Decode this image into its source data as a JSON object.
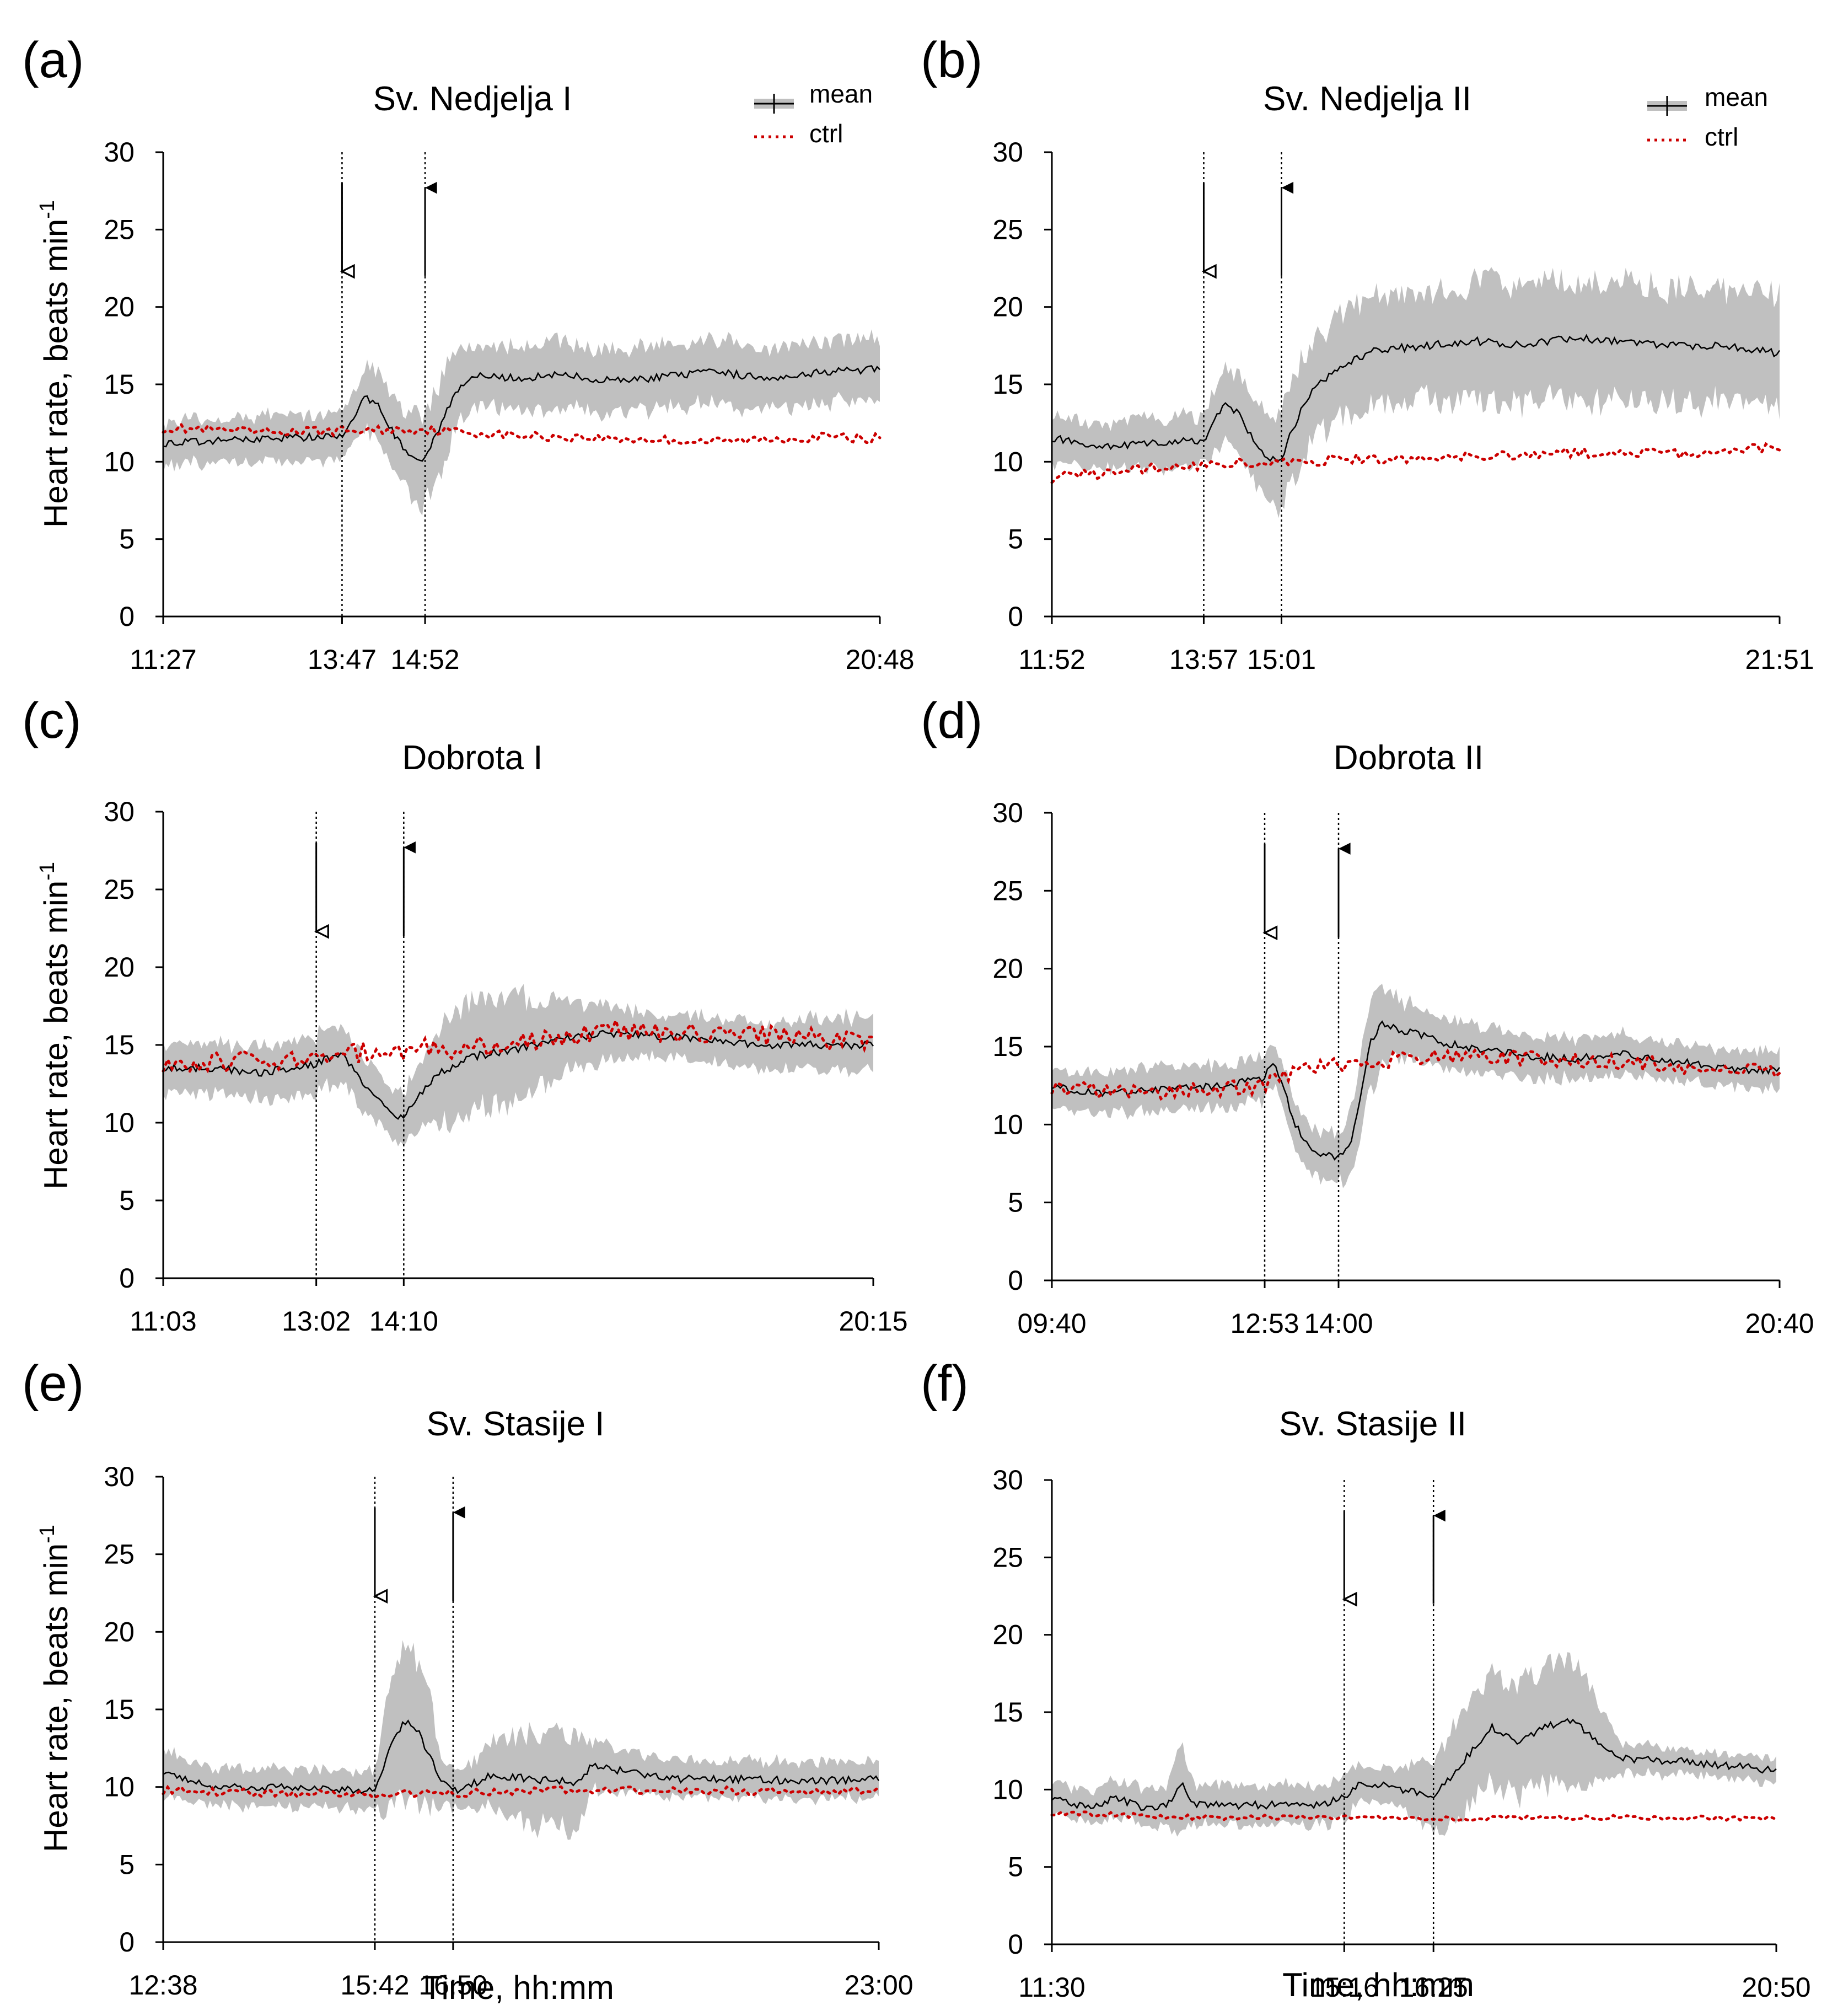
{
  "figure": {
    "xlabel": "Time, hh:mm",
    "ylabel": "Heart rate, beats min",
    "ylabel_sup": "-1",
    "legend": {
      "mean_label": "mean",
      "ctrl_label": "ctrl"
    }
  },
  "colors": {
    "mean": "#000000",
    "band": "#c0c0c0",
    "ctrl": "#cc0000",
    "axis": "#000000"
  },
  "chart_data": [
    {
      "letter": "(a)",
      "title": "Sv. Nedjelja I",
      "type": "line",
      "show_legend": true,
      "xlim": [
        687,
        1248
      ],
      "ylim": [
        0,
        30
      ],
      "yticks": [
        0,
        5,
        10,
        15,
        20,
        25,
        30
      ],
      "xticks": [
        {
          "v": 687,
          "label": "11:27"
        },
        {
          "v": 827,
          "label": "13:47"
        },
        {
          "v": 892,
          "label": "14:52"
        },
        {
          "v": 1248,
          "label": "20:48"
        }
      ],
      "arrows": {
        "down": 827,
        "up": 892
      },
      "ctrl_noise": 0.3,
      "series": [
        {
          "name": "mean",
          "x": [
            687,
            720,
            760,
            800,
            827,
            835,
            845,
            855,
            865,
            875,
            885,
            892,
            905,
            915,
            925,
            935,
            960,
            1000,
            1040,
            1080,
            1120,
            1160,
            1200,
            1248
          ],
          "y": [
            11.2,
            11.3,
            11.5,
            11.6,
            11.6,
            12.5,
            14.2,
            13.8,
            12.2,
            10.8,
            10.2,
            10.3,
            12.5,
            14.5,
            15.2,
            15.5,
            15.4,
            15.6,
            15.2,
            15.5,
            15.8,
            15.4,
            15.8,
            16.0
          ],
          "err": [
            1.4,
            1.4,
            1.5,
            1.5,
            1.5,
            1.6,
            2.0,
            2.2,
            2.3,
            2.5,
            3.0,
            3.0,
            3.0,
            2.4,
            2.0,
            2.0,
            2.0,
            2.2,
            2.0,
            2.0,
            2.0,
            2.0,
            2.0,
            2.0
          ]
        },
        {
          "name": "ctrl",
          "x": [
            687,
            760,
            827,
            892,
            960,
            1040,
            1120,
            1200,
            1248
          ],
          "y": [
            12.2,
            11.9,
            12.0,
            12.1,
            11.7,
            11.5,
            11.3,
            11.6,
            11.5
          ]
        }
      ]
    },
    {
      "letter": "(b)",
      "title": "Sv. Nedjelja II",
      "type": "line",
      "show_legend": true,
      "xlim": [
        712,
        1311
      ],
      "ylim": [
        0,
        30
      ],
      "yticks": [
        0,
        5,
        10,
        15,
        20,
        25,
        30
      ],
      "xticks": [
        {
          "v": 712,
          "label": "11:52"
        },
        {
          "v": 837,
          "label": "13:57"
        },
        {
          "v": 901,
          "label": "15:01"
        },
        {
          "v": 1311,
          "label": "21:51"
        }
      ],
      "arrows": {
        "down": 837,
        "up": 901
      },
      "ctrl_noise": 0.35,
      "series": [
        {
          "name": "mean",
          "x": [
            712,
            760,
            800,
            837,
            845,
            855,
            865,
            880,
            890,
            901,
            915,
            930,
            950,
            980,
            1020,
            1060,
            1100,
            1140,
            1180,
            1220,
            1260,
            1311
          ],
          "y": [
            11.5,
            11.0,
            11.2,
            11.4,
            12.5,
            13.8,
            13.2,
            11.2,
            10.0,
            10.3,
            13.0,
            15.0,
            16.2,
            17.2,
            17.5,
            17.8,
            17.5,
            18.0,
            17.8,
            17.5,
            17.5,
            17.0
          ],
          "err": [
            1.5,
            1.5,
            1.6,
            1.6,
            2.0,
            2.5,
            2.5,
            2.6,
            3.0,
            3.2,
            3.2,
            3.2,
            3.3,
            3.5,
            3.5,
            3.8,
            3.8,
            3.8,
            3.8,
            3.7,
            3.6,
            3.6
          ]
        },
        {
          "name": "ctrl",
          "x": [
            712,
            800,
            837,
            901,
            960,
            1040,
            1120,
            1200,
            1260,
            1311
          ],
          "y": [
            9.0,
            9.6,
            9.8,
            10.0,
            10.2,
            10.3,
            10.6,
            10.6,
            10.5,
            11.0
          ]
        }
      ]
    },
    {
      "letter": "(c)",
      "title": "Dobrota I",
      "type": "line",
      "show_legend": false,
      "xlim": [
        663,
        1215
      ],
      "ylim": [
        0,
        30
      ],
      "yticks": [
        0,
        5,
        10,
        15,
        20,
        25,
        30
      ],
      "xticks": [
        {
          "v": 663,
          "label": "11:03"
        },
        {
          "v": 782,
          "label": "13:02"
        },
        {
          "v": 850,
          "label": "14:10"
        },
        {
          "v": 1215,
          "label": "20:15"
        }
      ],
      "arrows": {
        "down": 782,
        "up": 850
      },
      "ctrl_noise": 0.7,
      "series": [
        {
          "name": "mean",
          "x": [
            663,
            700,
            740,
            782,
            800,
            815,
            830,
            845,
            850,
            860,
            875,
            900,
            940,
            980,
            1020,
            1060,
            1100,
            1140,
            1180,
            1215
          ],
          "y": [
            13.5,
            13.5,
            13.2,
            13.8,
            14.5,
            13.0,
            11.5,
            10.5,
            10.3,
            11.5,
            13.0,
            14.2,
            14.8,
            15.5,
            15.8,
            15.5,
            15.2,
            15.0,
            15.0,
            15.0
          ],
          "err": [
            1.6,
            1.6,
            1.6,
            1.8,
            1.8,
            1.8,
            1.6,
            1.5,
            1.5,
            2.0,
            3.0,
            3.5,
            3.2,
            2.2,
            1.5,
            1.5,
            1.5,
            1.5,
            1.8,
            1.8
          ]
        },
        {
          "name": "ctrl",
          "x": [
            663,
            720,
            782,
            850,
            900,
            960,
            1020,
            1080,
            1140,
            1215
          ],
          "y": [
            14.0,
            14.0,
            14.2,
            14.7,
            14.8,
            15.3,
            16.0,
            15.6,
            15.5,
            15.2
          ]
        }
      ]
    },
    {
      "letter": "(d)",
      "title": "Dobrota II",
      "type": "line",
      "show_legend": false,
      "xlim": [
        580,
        1240
      ],
      "ylim": [
        0,
        30
      ],
      "yticks": [
        0,
        5,
        10,
        15,
        20,
        25,
        30
      ],
      "xticks": [
        {
          "v": 580,
          "label": "09:40"
        },
        {
          "v": 773,
          "label": "12:53"
        },
        {
          "v": 840,
          "label": "14:00"
        },
        {
          "v": 1240,
          "label": "20:40"
        }
      ],
      "arrows": {
        "down": 773,
        "up": 840
      },
      "ctrl_noise": 0.5,
      "series": [
        {
          "name": "mean",
          "x": [
            580,
            620,
            680,
            740,
            773,
            780,
            790,
            800,
            815,
            830,
            840,
            850,
            860,
            870,
            880,
            900,
            950,
            1000,
            1050,
            1100,
            1150,
            1200,
            1240
          ],
          "y": [
            12.5,
            12.0,
            12.2,
            12.5,
            13.0,
            14.0,
            12.5,
            10.0,
            8.5,
            8.0,
            7.8,
            8.5,
            12.0,
            15.5,
            16.5,
            16.0,
            15.0,
            14.5,
            14.2,
            14.5,
            14.0,
            13.5,
            13.5
          ],
          "err": [
            1.2,
            1.3,
            1.4,
            1.4,
            1.4,
            1.4,
            1.5,
            1.5,
            1.5,
            1.5,
            1.6,
            2.0,
            2.5,
            3.0,
            2.5,
            1.8,
            1.6,
            1.4,
            1.3,
            1.3,
            1.2,
            1.2,
            1.2
          ]
        },
        {
          "name": "ctrl",
          "x": [
            580,
            640,
            700,
            773,
            800,
            840,
            900,
            960,
            1020,
            1100,
            1180,
            1240
          ],
          "y": [
            12.5,
            12.0,
            12.2,
            12.5,
            13.5,
            13.8,
            14.2,
            14.5,
            14.2,
            14.0,
            13.6,
            13.5
          ]
        }
      ]
    },
    {
      "letter": "(e)",
      "title": "Sv. Stasije I",
      "type": "line",
      "show_legend": false,
      "xlim": [
        758,
        1380
      ],
      "ylim": [
        0,
        30
      ],
      "yticks": [
        0,
        5,
        10,
        15,
        20,
        25,
        30
      ],
      "xticks": [
        {
          "v": 758,
          "label": "12:38"
        },
        {
          "v": 942,
          "label": "15:42"
        },
        {
          "v": 1010,
          "label": "16:50"
        },
        {
          "v": 1380,
          "label": "23:00"
        }
      ],
      "arrows": {
        "down": 942,
        "up": 1010
      },
      "ctrl_noise": 0.25,
      "series": [
        {
          "name": "mean",
          "x": [
            758,
            800,
            850,
            900,
            942,
            950,
            960,
            970,
            980,
            990,
            1000,
            1010,
            1020,
            1040,
            1080,
            1120,
            1130,
            1160,
            1200,
            1260,
            1320,
            1380
          ],
          "y": [
            11.0,
            10.0,
            10.0,
            9.8,
            9.8,
            11.5,
            13.5,
            14.2,
            13.5,
            12.0,
            10.5,
            9.7,
            9.8,
            10.8,
            10.5,
            10.3,
            11.3,
            11.0,
            10.5,
            10.5,
            10.4,
            10.5
          ],
          "err": [
            1.5,
            1.2,
            1.2,
            1.2,
            1.3,
            3.0,
            4.5,
            5.0,
            4.5,
            3.5,
            1.5,
            1.3,
            1.3,
            2.0,
            3.0,
            3.0,
            1.5,
            1.3,
            1.2,
            1.2,
            1.2,
            1.2
          ]
        },
        {
          "name": "ctrl",
          "x": [
            758,
            850,
            942,
            1010,
            1100,
            1200,
            1300,
            1380
          ],
          "y": [
            9.8,
            9.6,
            9.5,
            9.6,
            9.8,
            9.8,
            9.7,
            9.8
          ]
        }
      ]
    },
    {
      "letter": "(f)",
      "title": "Sv. Stasije II",
      "type": "line",
      "show_legend": false,
      "xlim": [
        690,
        1250
      ],
      "ylim": [
        0,
        30
      ],
      "yticks": [
        0,
        5,
        10,
        15,
        20,
        25,
        30
      ],
      "xticks": [
        {
          "v": 690,
          "label": "11:30"
        },
        {
          "v": 916,
          "label": "15:16"
        },
        {
          "v": 985,
          "label": "16:25"
        },
        {
          "v": 1250,
          "label": "20:50"
        }
      ],
      "arrows": {
        "down": 916,
        "up": 985
      },
      "ctrl_noise": 0.15,
      "series": [
        {
          "name": "mean",
          "x": [
            690,
            720,
            740,
            760,
            780,
            790,
            800,
            820,
            860,
            900,
            916,
            930,
            960,
            985,
            1000,
            1020,
            1030,
            1050,
            1070,
            1090,
            1100,
            1130,
            1180,
            1220,
            1250
          ],
          "y": [
            9.5,
            8.8,
            9.5,
            8.8,
            9.0,
            10.5,
            9.0,
            9.0,
            9.0,
            9.0,
            9.5,
            10.5,
            10.0,
            9.5,
            11.0,
            13.0,
            14.0,
            13.0,
            14.0,
            14.5,
            14.0,
            12.0,
            11.8,
            11.5,
            11.2
          ],
          "err": [
            1.0,
            1.0,
            1.2,
            1.2,
            1.3,
            3.0,
            1.3,
            1.3,
            1.3,
            1.3,
            1.5,
            1.0,
            1.2,
            2.5,
            3.0,
            3.2,
            3.5,
            3.5,
            3.8,
            4.0,
            3.5,
            1.0,
            0.8,
            0.8,
            0.8
          ]
        },
        {
          "name": "ctrl",
          "x": [
            690,
            800,
            916,
            985,
            1050,
            1150,
            1250
          ],
          "y": [
            8.5,
            8.2,
            8.2,
            8.1,
            8.2,
            8.2,
            8.1
          ]
        }
      ]
    }
  ]
}
